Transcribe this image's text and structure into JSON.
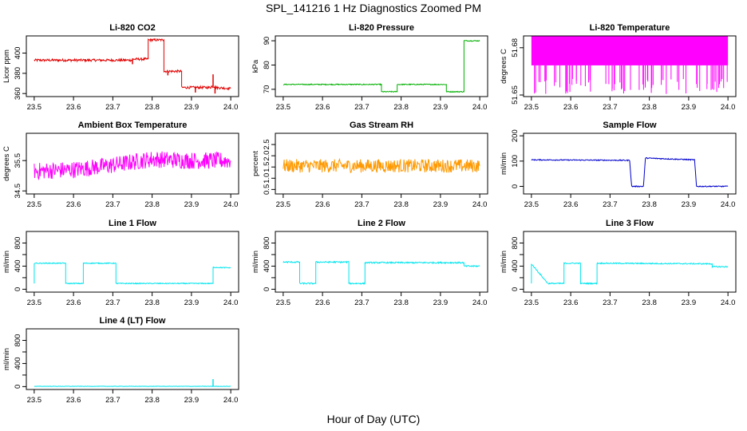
{
  "figure": {
    "title": "SPL_141216  1 Hz Diagnostics Zoomed PM",
    "xlabel": "Hour of Day (UTC)"
  },
  "chart_data": [
    {
      "type": "line",
      "title": "Li-820 CO2",
      "ylabel": "Licor ppm",
      "color": "#e00000",
      "xlim": [
        23.48,
        24.02
      ],
      "xticks": [
        "23.5",
        "23.6",
        "23.7",
        "23.8",
        "23.9",
        "24.0"
      ],
      "ylim": [
        357,
        417
      ],
      "yticks": [
        {
          "v": 360,
          "label": "360"
        },
        {
          "v": 380,
          "label": "380"
        },
        {
          "v": 400,
          "label": "400"
        }
      ],
      "noise": 1.2,
      "series": [
        [
          23.5,
          393
        ],
        [
          23.75,
          393
        ],
        [
          23.75,
          394
        ],
        [
          23.79,
          394
        ],
        [
          23.79,
          413
        ],
        [
          23.83,
          413
        ],
        [
          23.83,
          382
        ],
        [
          23.875,
          382
        ],
        [
          23.875,
          366
        ],
        [
          23.95,
          366
        ],
        [
          23.95,
          367
        ],
        [
          23.96,
          367
        ],
        [
          23.96,
          366
        ],
        [
          24.0,
          365
        ]
      ],
      "spikes": [
        [
          23.75,
          389
        ],
        [
          23.84,
          378
        ],
        [
          23.91,
          361
        ],
        [
          23.955,
          379
        ],
        [
          23.96,
          360
        ]
      ]
    },
    {
      "type": "line",
      "title": "Li-820 Pressure",
      "ylabel": "kPa",
      "color": "#00b000",
      "xlim": [
        23.48,
        24.02
      ],
      "xticks": [
        "23.5",
        "23.6",
        "23.7",
        "23.8",
        "23.9",
        "24.0"
      ],
      "ylim": [
        67,
        92
      ],
      "yticks": [
        {
          "v": 70,
          "label": "70"
        },
        {
          "v": 80,
          "label": "80"
        },
        {
          "v": 90,
          "label": "90"
        }
      ],
      "noise": 0.2,
      "series": [
        [
          23.5,
          72
        ],
        [
          23.75,
          72
        ],
        [
          23.75,
          69
        ],
        [
          23.79,
          69
        ],
        [
          23.79,
          72
        ],
        [
          23.915,
          72
        ],
        [
          23.915,
          69
        ],
        [
          23.96,
          69
        ],
        [
          23.96,
          90
        ],
        [
          24.0,
          90
        ]
      ]
    },
    {
      "type": "line",
      "title": "Li-820 Temperature",
      "ylabel": "degrees C",
      "color": "#ff00ff",
      "xlim": [
        23.48,
        24.02
      ],
      "xticks": [
        "23.5",
        "23.6",
        "23.7",
        "23.8",
        "23.9",
        "24.0"
      ],
      "ylim": [
        51.649,
        51.6875
      ],
      "yticks": [
        {
          "v": 51.65,
          "label": "51.65"
        },
        {
          "v": 51.68,
          "label": "51.68"
        }
      ],
      "band": [
        51.6688,
        51.6875
      ],
      "dropLow": 51.6505,
      "dropCount": 70
    },
    {
      "type": "line",
      "title": "Ambient Box Temperature",
      "ylabel": "degrees C",
      "color": "#ff00ff",
      "xlim": [
        23.48,
        24.02
      ],
      "xticks": [
        "23.5",
        "23.6",
        "23.7",
        "23.8",
        "23.9",
        "24.0"
      ],
      "ylim": [
        34.4,
        36.4
      ],
      "yticks": [
        {
          "v": 34.5,
          "label": "34.5"
        },
        {
          "v": 35.5,
          "label": "35.5"
        }
      ],
      "noise": 0.28,
      "series": [
        [
          23.5,
          35.15
        ],
        [
          23.6,
          35.2
        ],
        [
          23.7,
          35.35
        ],
        [
          23.8,
          35.55
        ],
        [
          23.9,
          35.5
        ],
        [
          24.0,
          35.5
        ]
      ]
    },
    {
      "type": "line",
      "title": "Gas Stream RH",
      "ylabel": "percent",
      "color": "#ff9900",
      "xlim": [
        23.48,
        24.02
      ],
      "xticks": [
        "23.5",
        "23.6",
        "23.7",
        "23.8",
        "23.9",
        "24.0"
      ],
      "ylim": [
        0.3,
        3.0
      ],
      "yticks": [
        {
          "v": 0.5,
          "label": "0.5"
        },
        {
          "v": 1.0,
          "label": "1.0"
        },
        {
          "v": 1.5,
          "label": "1.5"
        },
        {
          "v": 2.0,
          "label": "2.0"
        },
        {
          "v": 2.5,
          "label": "2.5"
        }
      ],
      "noise": 0.3,
      "series": [
        [
          23.5,
          1.55
        ],
        [
          24.0,
          1.55
        ]
      ]
    },
    {
      "type": "line",
      "title": "Sample Flow",
      "ylabel": "ml/min",
      "color": "#0000cc",
      "xlim": [
        23.48,
        24.02
      ],
      "xticks": [
        "23.5",
        "23.6",
        "23.7",
        "23.8",
        "23.9",
        "24.0"
      ],
      "ylim": [
        -30,
        210
      ],
      "yticks": [
        {
          "v": 0,
          "label": "0"
        },
        {
          "v": 100,
          "label": "100"
        },
        {
          "v": 200,
          "label": "200"
        }
      ],
      "noise": 2,
      "series": [
        [
          23.5,
          105
        ],
        [
          23.75,
          103
        ],
        [
          23.755,
          0
        ],
        [
          23.785,
          0
        ],
        [
          23.79,
          112
        ],
        [
          23.915,
          105
        ],
        [
          23.92,
          0
        ],
        [
          24.0,
          0
        ]
      ]
    },
    {
      "type": "line",
      "title": "Line 1 Flow",
      "ylabel": "ml/min",
      "color": "#00e5ee",
      "xlim": [
        23.48,
        24.02
      ],
      "xticks": [
        "23.5",
        "23.6",
        "23.7",
        "23.8",
        "23.9",
        "24.0"
      ],
      "ylim": [
        -50,
        1000
      ],
      "yticks": [
        {
          "v": 0,
          "label": "0"
        },
        {
          "v": 200,
          "label": ""
        },
        {
          "v": 400,
          "label": "400"
        },
        {
          "v": 600,
          "label": ""
        },
        {
          "v": 800,
          "label": "800"
        }
      ],
      "noise": 8,
      "series": [
        [
          23.5,
          100
        ],
        [
          23.5,
          450
        ],
        [
          23.58,
          450
        ],
        [
          23.58,
          100
        ],
        [
          23.625,
          100
        ],
        [
          23.625,
          450
        ],
        [
          23.708,
          450
        ],
        [
          23.708,
          100
        ],
        [
          23.955,
          100
        ],
        [
          23.955,
          380
        ],
        [
          24.0,
          370
        ]
      ]
    },
    {
      "type": "line",
      "title": "Line 2 Flow",
      "ylabel": "ml/min",
      "color": "#00e5ee",
      "xlim": [
        23.48,
        24.02
      ],
      "xticks": [
        "23.5",
        "23.6",
        "23.7",
        "23.8",
        "23.9",
        "24.0"
      ],
      "ylim": [
        -50,
        1000
      ],
      "yticks": [
        {
          "v": 0,
          "label": "0"
        },
        {
          "v": 200,
          "label": ""
        },
        {
          "v": 400,
          "label": "400"
        },
        {
          "v": 600,
          "label": ""
        },
        {
          "v": 800,
          "label": "800"
        }
      ],
      "noise": 12,
      "series": [
        [
          23.5,
          470
        ],
        [
          23.542,
          470
        ],
        [
          23.542,
          100
        ],
        [
          23.583,
          100
        ],
        [
          23.583,
          470
        ],
        [
          23.667,
          470
        ],
        [
          23.667,
          100
        ],
        [
          23.708,
          100
        ],
        [
          23.708,
          460
        ],
        [
          23.96,
          460
        ],
        [
          23.96,
          400
        ],
        [
          24.0,
          400
        ]
      ]
    },
    {
      "type": "line",
      "title": "Line 3 Flow",
      "ylabel": "ml/min",
      "color": "#00e5ee",
      "xlim": [
        23.48,
        24.02
      ],
      "xticks": [
        "23.5",
        "23.6",
        "23.7",
        "23.8",
        "23.9",
        "24.0"
      ],
      "ylim": [
        -50,
        1000
      ],
      "yticks": [
        {
          "v": 0,
          "label": "0"
        },
        {
          "v": 200,
          "label": ""
        },
        {
          "v": 400,
          "label": "400"
        },
        {
          "v": 600,
          "label": ""
        },
        {
          "v": 800,
          "label": "800"
        }
      ],
      "noise": 10,
      "series": [
        [
          23.5,
          100
        ],
        [
          23.5,
          440
        ],
        [
          23.542,
          100
        ],
        [
          23.583,
          100
        ],
        [
          23.583,
          450
        ],
        [
          23.625,
          450
        ],
        [
          23.625,
          100
        ],
        [
          23.667,
          100
        ],
        [
          23.667,
          450
        ],
        [
          23.96,
          440
        ],
        [
          23.96,
          390
        ],
        [
          24.0,
          390
        ]
      ]
    },
    {
      "type": "line",
      "title": "Line 4 (LT) Flow",
      "ylabel": "ml/min",
      "color": "#00e5ee",
      "xlim": [
        23.48,
        24.02
      ],
      "xticks": [
        "23.5",
        "23.6",
        "23.7",
        "23.8",
        "23.9",
        "24.0"
      ],
      "ylim": [
        -50,
        1000
      ],
      "yticks": [
        {
          "v": 0,
          "label": "0"
        },
        {
          "v": 200,
          "label": ""
        },
        {
          "v": 400,
          "label": "400"
        },
        {
          "v": 600,
          "label": ""
        },
        {
          "v": 800,
          "label": "800"
        }
      ],
      "noise": 3,
      "series": [
        [
          23.5,
          5
        ],
        [
          24.0,
          5
        ]
      ],
      "spikes": [
        [
          23.955,
          130
        ],
        [
          23.957,
          0
        ]
      ]
    }
  ]
}
